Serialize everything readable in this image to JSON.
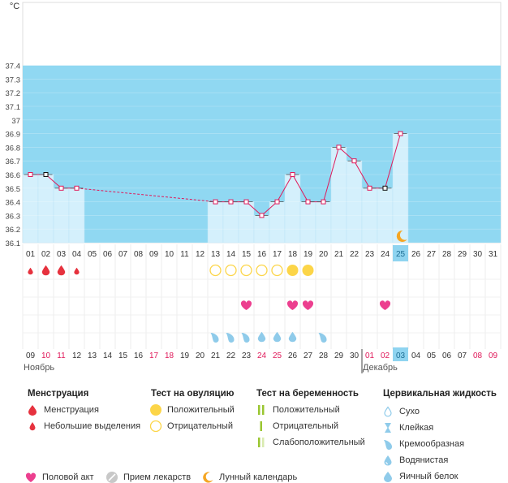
{
  "chart": {
    "unit_label": "°C",
    "y_ticks": [
      "36.1",
      "36.2",
      "36.3",
      "36.4",
      "36.5",
      "36.6",
      "36.7",
      "36.8",
      "36.9",
      "37",
      "37.1",
      "37.2",
      "37.3",
      "37.4"
    ],
    "cycle_days": [
      "01",
      "02",
      "03",
      "04",
      "05",
      "06",
      "07",
      "08",
      "09",
      "10",
      "11",
      "12",
      "13",
      "14",
      "15",
      "16",
      "17",
      "18",
      "19",
      "20",
      "21",
      "22",
      "23",
      "24",
      "25",
      "26",
      "27",
      "28",
      "29",
      "30",
      "31"
    ],
    "current_day_index": 24,
    "calendar_dates": [
      "09",
      "10",
      "11",
      "12",
      "13",
      "14",
      "15",
      "16",
      "17",
      "18",
      "19",
      "20",
      "21",
      "22",
      "23",
      "24",
      "25",
      "26",
      "27",
      "28",
      "29",
      "30",
      "01",
      "02",
      "03",
      "04",
      "05",
      "06",
      "07",
      "08",
      "09"
    ],
    "red_date_indices": [
      1,
      2,
      8,
      9,
      15,
      16,
      22,
      23,
      29,
      30
    ],
    "month_labels": [
      {
        "text": "Ноябрь",
        "index": 0
      },
      {
        "text": "Декабрь",
        "index": 22
      }
    ],
    "temperatures": [
      36.6,
      36.6,
      36.5,
      36.5,
      null,
      null,
      null,
      null,
      null,
      null,
      null,
      null,
      36.4,
      36.4,
      36.4,
      36.3,
      36.4,
      36.6,
      36.4,
      36.4,
      36.8,
      36.7,
      36.5,
      36.5,
      36.9,
      null,
      null,
      null,
      null,
      null,
      null
    ],
    "marked_points": [
      1,
      23
    ],
    "menstruation_heavy": [
      1,
      2
    ],
    "menstruation_light": [
      0,
      3
    ],
    "ovulation_positive": [
      17,
      18
    ],
    "ovulation_negative": [
      12,
      13,
      14,
      15,
      16
    ],
    "intercourse": [
      14,
      17,
      18,
      23
    ],
    "cervical_creamy": [
      12,
      13,
      14,
      19
    ],
    "cervical_eggwhite": [
      15,
      16,
      17
    ],
    "lunar_day_index": 24,
    "y_min": 36.1,
    "y_max": 37.5,
    "band_from": 36.1,
    "band_to": 37.4
  },
  "colors": {
    "band": "#90d8f2",
    "bar": "#d4f0fc",
    "line": "#e0195a",
    "menstruation": "#e6323e",
    "ovulation": "#fcd548",
    "intercourse": "#ec3f8f",
    "cervical": "#8fcbea",
    "current_day": "#8fd4f0",
    "lunar": "#f5a623",
    "red_text": "#e0195a"
  },
  "legend": {
    "menstruation": {
      "title": "Менструация",
      "items": [
        "Менструация",
        "Небольшие выделения"
      ]
    },
    "ovulation_test": {
      "title": "Тест на овуляцию",
      "items": [
        "Положительный",
        "Отрицательный"
      ]
    },
    "pregnancy_test": {
      "title": "Тест на беременность",
      "items": [
        "Положительный",
        "Отрицательный",
        "Слабоположительный"
      ]
    },
    "cervical": {
      "title": "Цервикальная жидкость",
      "items": [
        "Сухо",
        "Клейкая",
        "Кремообразная",
        "Водянистая",
        "Яичный белок"
      ]
    },
    "bottom": [
      "Половой акт",
      "Прием лекарств",
      "Лунный календарь"
    ]
  }
}
